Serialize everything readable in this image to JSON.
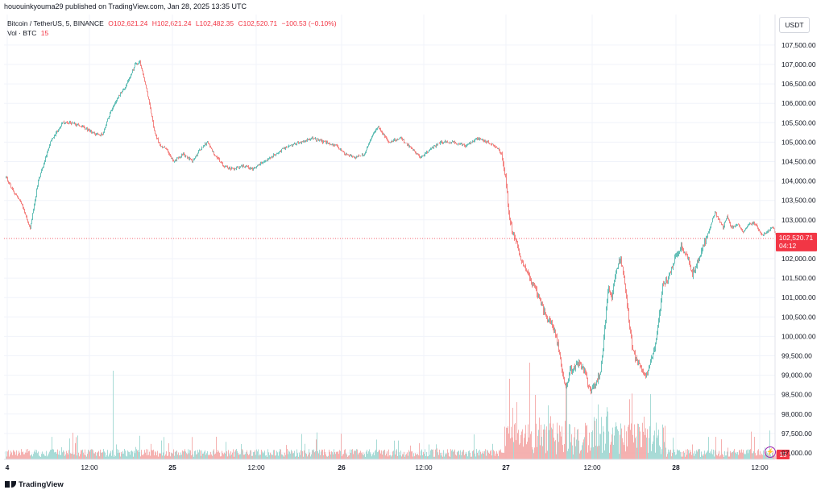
{
  "header": {
    "publisher_line": "hououinkyouma29 published on TradingView.com, Jan 28, 2025 13:35 UTC"
  },
  "legend": {
    "symbol": "Bitcoin / TetherUS, 5, BINANCE",
    "open": "O102,621.24",
    "high": "H102,621.24",
    "low": "L102,482.35",
    "close": "C102,520.71",
    "change": "−100.53 (−0.10%)",
    "vol_label": "Vol · BTC",
    "vol_value": "15"
  },
  "price_scale": {
    "unit": "USDT"
  },
  "footer": {
    "logo_text": "TradingView"
  },
  "colors": {
    "up": "#26a69a",
    "down": "#ef5350",
    "vol_up": "#9fd7d1",
    "vol_down": "#f4a9a7",
    "last_price": "#f23645"
  },
  "chart_data": {
    "type": "candlestick",
    "symbol": "Bitcoin / TetherUS",
    "interval": "5",
    "exchange": "BINANCE",
    "x_ticks": [
      "4",
      "12:00",
      "25",
      "12:00",
      "26",
      "12:00",
      "27",
      "12:00",
      "28",
      "12:00"
    ],
    "y_ticks": [
      "107,500.00",
      "107,000.00",
      "106,500.00",
      "106,000.00",
      "105,500.00",
      "105,000.00",
      "104,500.00",
      "104,000.00",
      "103,500.00",
      "103,000.00",
      "102,000.00",
      "101,500.00",
      "101,000.00",
      "100,500.00",
      "100,000.00",
      "99,500.00",
      "99,000.00",
      "98,500.00",
      "98,000.00",
      "97,500.00",
      "97,000.00"
    ],
    "y_tick_values": [
      107500,
      107000,
      106500,
      106000,
      105500,
      105000,
      104500,
      104000,
      103500,
      103000,
      102000,
      101500,
      101000,
      100500,
      100000,
      99500,
      99000,
      98500,
      98000,
      97500,
      97000
    ],
    "ylim": [
      96900,
      107950
    ],
    "last_price": 102520.71,
    "last_price_label": "102,520.71",
    "countdown": "04:12",
    "volume_last_label": "15",
    "grid": true,
    "price_path_keypoints": [
      [
        0,
        104100
      ],
      [
        10,
        103700
      ],
      [
        20,
        103400
      ],
      [
        26,
        103000
      ],
      [
        30,
        102800
      ],
      [
        40,
        104000
      ],
      [
        55,
        105000
      ],
      [
        70,
        105500
      ],
      [
        80,
        105500
      ],
      [
        95,
        105400
      ],
      [
        110,
        105200
      ],
      [
        120,
        105200
      ],
      [
        128,
        105700
      ],
      [
        140,
        106200
      ],
      [
        150,
        106500
      ],
      [
        160,
        107000
      ],
      [
        166,
        107050
      ],
      [
        172,
        106600
      ],
      [
        178,
        106000
      ],
      [
        185,
        105200
      ],
      [
        192,
        104900
      ],
      [
        200,
        104800
      ],
      [
        208,
        104500
      ],
      [
        220,
        104700
      ],
      [
        232,
        104500
      ],
      [
        240,
        104800
      ],
      [
        250,
        105000
      ],
      [
        258,
        104700
      ],
      [
        270,
        104400
      ],
      [
        282,
        104300
      ],
      [
        295,
        104400
      ],
      [
        305,
        104300
      ],
      [
        320,
        104500
      ],
      [
        335,
        104700
      ],
      [
        350,
        104900
      ],
      [
        365,
        105000
      ],
      [
        380,
        105100
      ],
      [
        395,
        105000
      ],
      [
        410,
        104900
      ],
      [
        420,
        104700
      ],
      [
        432,
        104600
      ],
      [
        445,
        104700
      ],
      [
        455,
        105200
      ],
      [
        462,
        105400
      ],
      [
        475,
        105000
      ],
      [
        490,
        105100
      ],
      [
        505,
        104800
      ],
      [
        515,
        104600
      ],
      [
        525,
        104800
      ],
      [
        540,
        105000
      ],
      [
        555,
        105000
      ],
      [
        570,
        104900
      ],
      [
        585,
        105100
      ],
      [
        598,
        105000
      ],
      [
        608,
        104900
      ],
      [
        615,
        104700
      ],
      [
        620,
        104100
      ],
      [
        624,
        103200
      ],
      [
        628,
        102700
      ],
      [
        633,
        102500
      ],
      [
        640,
        101900
      ],
      [
        650,
        101500
      ],
      [
        660,
        101100
      ],
      [
        670,
        100500
      ],
      [
        680,
        100200
      ],
      [
        686,
        99700
      ],
      [
        690,
        99100
      ],
      [
        695,
        98700
      ],
      [
        700,
        99100
      ],
      [
        710,
        99300
      ],
      [
        718,
        99100
      ],
      [
        725,
        98600
      ],
      [
        732,
        98800
      ],
      [
        738,
        99100
      ],
      [
        743,
        100200
      ],
      [
        748,
        101300
      ],
      [
        752,
        101000
      ],
      [
        757,
        101700
      ],
      [
        762,
        102000
      ],
      [
        767,
        101600
      ],
      [
        772,
        100600
      ],
      [
        778,
        99600
      ],
      [
        785,
        99300
      ],
      [
        790,
        99100
      ],
      [
        795,
        99000
      ],
      [
        800,
        99400
      ],
      [
        805,
        99700
      ],
      [
        810,
        100400
      ],
      [
        815,
        101300
      ],
      [
        822,
        101500
      ],
      [
        830,
        102000
      ],
      [
        838,
        102300
      ],
      [
        845,
        102100
      ],
      [
        852,
        101600
      ],
      [
        858,
        101900
      ],
      [
        865,
        102300
      ],
      [
        872,
        102700
      ],
      [
        880,
        103200
      ],
      [
        885,
        103000
      ],
      [
        890,
        102800
      ],
      [
        895,
        103100
      ],
      [
        900,
        102800
      ],
      [
        908,
        102900
      ],
      [
        915,
        102700
      ],
      [
        922,
        102900
      ],
      [
        930,
        102900
      ],
      [
        938,
        102600
      ],
      [
        945,
        102700
      ],
      [
        952,
        102800
      ],
      [
        958,
        102520.71
      ]
    ]
  }
}
